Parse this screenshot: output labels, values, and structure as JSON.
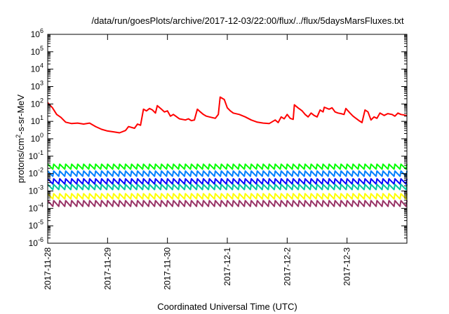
{
  "chart_data": {
    "type": "line",
    "title": "/data/run/goesPlots/archive/2017-12-03/22:00/flux/../flux/5daysMarsFluxes.txt",
    "xlabel": "Coordinated Universal Time (UTC)",
    "ylabel": {
      "pre": "protons/cm",
      "sup": "2",
      "post": "-s-sr-MeV"
    },
    "yscale": "log",
    "ylim_exp": [
      -6,
      6
    ],
    "xlim": [
      "2017-11-28",
      "2017-12-04"
    ],
    "x_ticks": [
      "2017-11-28",
      "2017-11-29",
      "2017-11-30",
      "2017-12-1",
      "2017-12-2",
      "2017-12-3"
    ],
    "y_ticks": [
      {
        "base": "10",
        "exp": "6"
      },
      {
        "base": "10",
        "exp": "5"
      },
      {
        "base": "10",
        "exp": "4"
      },
      {
        "base": "10",
        "exp": "3"
      },
      {
        "base": "10",
        "exp": "2"
      },
      {
        "base": "10",
        "exp": "1"
      },
      {
        "base": "10",
        "exp": "0"
      },
      {
        "base": "10",
        "exp": "-1"
      },
      {
        "base": "10",
        "exp": "-2"
      },
      {
        "base": "10",
        "exp": "-3"
      },
      {
        "base": "10",
        "exp": "-4"
      },
      {
        "base": "10",
        "exp": "-5"
      },
      {
        "base": "10",
        "exp": "-6"
      }
    ],
    "grid": false,
    "legend": "none",
    "series": [
      {
        "color": "#ff0000",
        "points": [
          [
            0.0,
            120
          ],
          [
            0.08,
            60
          ],
          [
            0.15,
            25
          ],
          [
            0.22,
            17
          ],
          [
            0.3,
            9
          ],
          [
            0.4,
            7.5
          ],
          [
            0.5,
            8
          ],
          [
            0.6,
            7
          ],
          [
            0.7,
            8
          ],
          [
            0.8,
            5
          ],
          [
            0.9,
            3.5
          ],
          [
            1.0,
            2.8
          ],
          [
            1.1,
            2.5
          ],
          [
            1.2,
            2.2
          ],
          [
            1.3,
            3
          ],
          [
            1.35,
            5
          ],
          [
            1.45,
            4
          ],
          [
            1.5,
            7
          ],
          [
            1.55,
            6
          ],
          [
            1.6,
            50
          ],
          [
            1.65,
            40
          ],
          [
            1.7,
            55
          ],
          [
            1.75,
            45
          ],
          [
            1.8,
            30
          ],
          [
            1.83,
            80
          ],
          [
            1.9,
            50
          ],
          [
            1.95,
            35
          ],
          [
            2.0,
            40
          ],
          [
            2.05,
            20
          ],
          [
            2.1,
            25
          ],
          [
            2.2,
            14
          ],
          [
            2.3,
            12
          ],
          [
            2.35,
            14
          ],
          [
            2.4,
            11
          ],
          [
            2.45,
            12
          ],
          [
            2.5,
            50
          ],
          [
            2.55,
            35
          ],
          [
            2.6,
            25
          ],
          [
            2.65,
            20
          ],
          [
            2.7,
            18
          ],
          [
            2.8,
            15
          ],
          [
            2.85,
            25
          ],
          [
            2.88,
            250
          ],
          [
            2.95,
            180
          ],
          [
            3.0,
            60
          ],
          [
            3.05,
            40
          ],
          [
            3.1,
            30
          ],
          [
            3.2,
            25
          ],
          [
            3.3,
            18
          ],
          [
            3.4,
            12
          ],
          [
            3.5,
            9
          ],
          [
            3.6,
            8
          ],
          [
            3.7,
            7.5
          ],
          [
            3.8,
            12
          ],
          [
            3.85,
            8.5
          ],
          [
            3.9,
            18
          ],
          [
            3.95,
            14
          ],
          [
            4.0,
            25
          ],
          [
            4.05,
            15
          ],
          [
            4.1,
            13
          ],
          [
            4.12,
            90
          ],
          [
            4.18,
            60
          ],
          [
            4.25,
            40
          ],
          [
            4.3,
            25
          ],
          [
            4.35,
            18
          ],
          [
            4.4,
            30
          ],
          [
            4.45,
            22
          ],
          [
            4.5,
            18
          ],
          [
            4.55,
            45
          ],
          [
            4.6,
            35
          ],
          [
            4.62,
            65
          ],
          [
            4.7,
            50
          ],
          [
            4.75,
            60
          ],
          [
            4.8,
            35
          ],
          [
            4.85,
            30
          ],
          [
            4.9,
            28
          ],
          [
            4.95,
            25
          ],
          [
            4.98,
            55
          ],
          [
            5.05,
            30
          ],
          [
            5.1,
            20
          ],
          [
            5.2,
            11
          ],
          [
            5.25,
            8.5
          ],
          [
            5.3,
            45
          ],
          [
            5.35,
            35
          ],
          [
            5.4,
            12
          ],
          [
            5.45,
            18
          ],
          [
            5.5,
            15
          ],
          [
            5.55,
            30
          ],
          [
            5.62,
            22
          ],
          [
            5.68,
            28
          ],
          [
            5.75,
            25
          ],
          [
            5.8,
            20
          ],
          [
            5.85,
            30
          ],
          [
            5.9,
            25
          ],
          [
            6.0,
            22
          ]
        ]
      },
      {
        "color": "#00ff00",
        "period": 0.1,
        "min": 0.018,
        "max": 0.035
      },
      {
        "color": "#0080ff",
        "period": 0.1,
        "min": 0.007,
        "max": 0.014
      },
      {
        "color": "#0000ff",
        "period": 0.1,
        "min": 0.0025,
        "max": 0.005
      },
      {
        "color": "#00c8a0",
        "period": 0.1,
        "min": 0.0012,
        "max": 0.0024
      },
      {
        "color": "#ffff00",
        "period": 0.1,
        "min": 0.00035,
        "max": 0.0007
      },
      {
        "color": "#993366",
        "period": 0.1,
        "min": 0.00013,
        "max": 0.00028
      }
    ]
  }
}
